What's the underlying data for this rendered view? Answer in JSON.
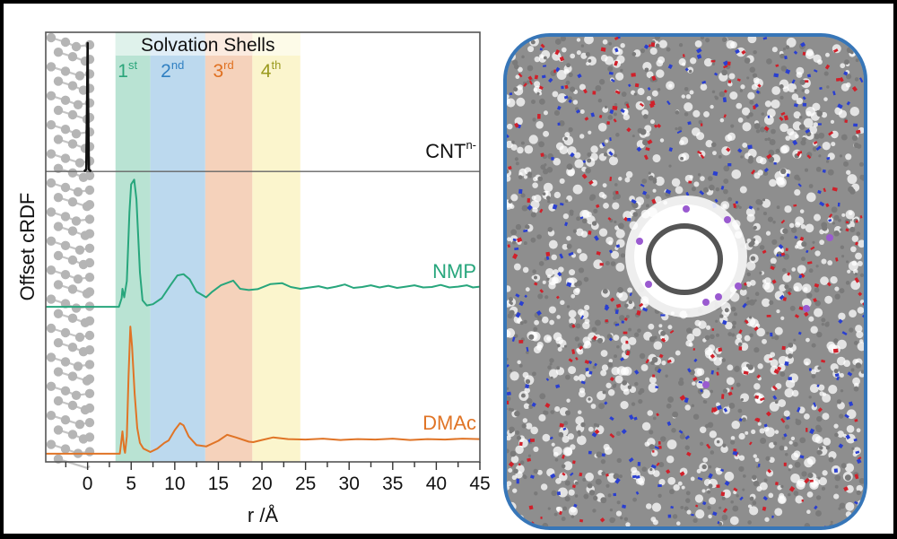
{
  "chart_data": {
    "type": "line",
    "title": "",
    "xlabel": "r /Å",
    "ylabel": "Offset cRDF",
    "xlim": [
      -4.8,
      45
    ],
    "ylim": [
      0,
      100
    ],
    "xticks": [
      0,
      5,
      10,
      15,
      20,
      25,
      30,
      35,
      40,
      45
    ],
    "xticks_minor_step": 2.5,
    "grid": false,
    "shells": {
      "title": "Solvation Shells",
      "bands": [
        {
          "label": "1",
          "sup": "st",
          "range": [
            3.2,
            7.2
          ],
          "color": "#b9e3d3",
          "text_color": "#2aa57a"
        },
        {
          "label": "2",
          "sup": "nd",
          "range": [
            7.2,
            13.5
          ],
          "color": "#bcd9ee",
          "text_color": "#2f7fc1"
        },
        {
          "label": "3",
          "sup": "rd",
          "range": [
            13.5,
            18.9
          ],
          "color": "#f5d2bb",
          "text_color": "#e07020"
        },
        {
          "label": "4",
          "sup": "th",
          "range": [
            18.9,
            24.4
          ],
          "color": "#fbf5cd",
          "text_color": "#9a9a1e"
        }
      ]
    },
    "panel_dividers": [
      67.6
    ],
    "series": [
      {
        "name": "CNT",
        "label": "CNT",
        "label_sup": "n-",
        "color": "#111111",
        "offset": 67.6,
        "points": [
          [
            -0.4,
            0
          ],
          [
            -0.15,
            0.5
          ],
          [
            -0.05,
            18
          ],
          [
            0,
            29.9
          ],
          [
            0.05,
            18
          ],
          [
            0.15,
            0.5
          ],
          [
            0.4,
            0
          ]
        ],
        "baseline_range": [
          -0.5,
          0.5
        ]
      },
      {
        "name": "NMP",
        "label": "NMP",
        "color": "#27a67c",
        "offset": 36.1,
        "points": [
          [
            -4.8,
            0
          ],
          [
            3.6,
            0
          ],
          [
            3.9,
            2
          ],
          [
            4.0,
            4.2
          ],
          [
            4.2,
            2.2
          ],
          [
            4.5,
            6
          ],
          [
            4.8,
            22
          ],
          [
            5.0,
            28.5
          ],
          [
            5.35,
            29.6
          ],
          [
            5.6,
            25
          ],
          [
            6.0,
            8
          ],
          [
            6.3,
            1.5
          ],
          [
            6.8,
            0.3
          ],
          [
            7.5,
            0.6
          ],
          [
            8.5,
            2
          ],
          [
            9.5,
            5
          ],
          [
            10.3,
            7.3
          ],
          [
            11.0,
            7.6
          ],
          [
            11.7,
            6.4
          ],
          [
            12.5,
            3.5
          ],
          [
            13.6,
            2.2
          ],
          [
            14.3,
            3.5
          ],
          [
            15.3,
            5.0
          ],
          [
            16.7,
            6.1
          ],
          [
            17.5,
            4.2
          ],
          [
            18.5,
            3.9
          ],
          [
            19.5,
            4.1
          ],
          [
            21.0,
            5.3
          ],
          [
            22.3,
            5.5
          ],
          [
            23.3,
            4.6
          ],
          [
            24.4,
            4.2
          ],
          [
            25.5,
            4.5
          ],
          [
            26.5,
            4.8
          ],
          [
            27.5,
            4.3
          ],
          [
            28.5,
            4.7
          ],
          [
            29.5,
            5.2
          ],
          [
            30.5,
            4.4
          ],
          [
            31.5,
            4.6
          ],
          [
            32.5,
            5.0
          ],
          [
            33.5,
            4.5
          ],
          [
            34.5,
            4.9
          ],
          [
            35.5,
            4.4
          ],
          [
            36.5,
            4.7
          ],
          [
            37.5,
            5.0
          ],
          [
            38.5,
            4.5
          ],
          [
            39.5,
            4.6
          ],
          [
            40.5,
            5.1
          ],
          [
            41.5,
            4.5
          ],
          [
            42.5,
            4.7
          ],
          [
            43.5,
            5.0
          ],
          [
            44.2,
            4.5
          ],
          [
            45,
            4.7
          ]
        ]
      },
      {
        "name": "DMAc",
        "label": "DMAc",
        "color": "#e07426",
        "offset": 1.9,
        "points": [
          [
            -4.8,
            0
          ],
          [
            3.7,
            0
          ],
          [
            3.9,
            3.5
          ],
          [
            4.0,
            5.2
          ],
          [
            4.2,
            1.0
          ],
          [
            4.3,
            0.2
          ],
          [
            4.5,
            4
          ],
          [
            4.7,
            18
          ],
          [
            4.9,
            29.6
          ],
          [
            5.1,
            25
          ],
          [
            5.4,
            14
          ],
          [
            5.7,
            6
          ],
          [
            6.0,
            2.5
          ],
          [
            6.4,
            1.2
          ],
          [
            7.2,
            0.4
          ],
          [
            8.0,
            1.2
          ],
          [
            8.8,
            2.5
          ],
          [
            9.3,
            3.1
          ],
          [
            10.0,
            5.5
          ],
          [
            10.6,
            7.1
          ],
          [
            11.0,
            6.6
          ],
          [
            11.6,
            4
          ],
          [
            12.5,
            2
          ],
          [
            13.6,
            1.7
          ],
          [
            15.0,
            3
          ],
          [
            16.0,
            4.4
          ],
          [
            17.0,
            3.8
          ],
          [
            18.5,
            2.8
          ],
          [
            19.0,
            2.7
          ],
          [
            20.0,
            3.2
          ],
          [
            21.3,
            3.8
          ],
          [
            23.0,
            3.4
          ],
          [
            25.0,
            3.3
          ],
          [
            27.0,
            3.5
          ],
          [
            29.0,
            3.2
          ],
          [
            31.0,
            3.4
          ],
          [
            33.0,
            3.3
          ],
          [
            35.0,
            3.5
          ],
          [
            37.0,
            3.2
          ],
          [
            39.0,
            3.4
          ],
          [
            41.0,
            3.3
          ],
          [
            43.0,
            3.5
          ],
          [
            45,
            3.4
          ]
        ]
      }
    ]
  },
  "inset": {
    "description": "MD snapshot: charged CNT cross-section surrounded by solvent molecules",
    "border_color": "#3776b8",
    "atom_colors": {
      "carbon": "#7a7a7a",
      "hydrogen": "#ffffff",
      "oxygen": "#d0202a",
      "nitrogen": "#2a3fd0",
      "cation": "#9a5ad0"
    }
  }
}
